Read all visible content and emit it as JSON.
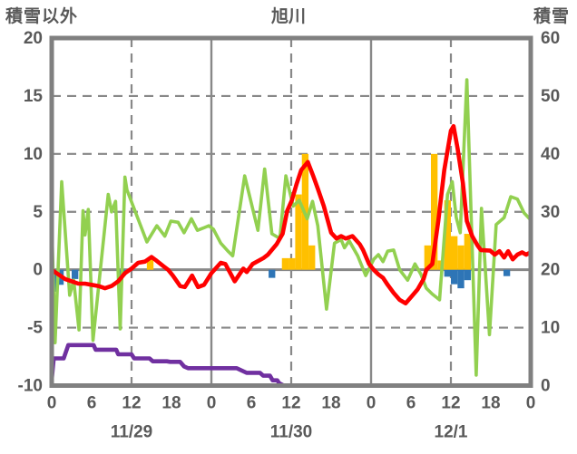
{
  "title": "旭川",
  "left_axis": {
    "label": "積雪以外",
    "ticks": [
      "20",
      "15",
      "10",
      "5",
      "0",
      "-5",
      "-10"
    ],
    "min": -10,
    "max": 20
  },
  "right_axis": {
    "label": "積雪",
    "ticks": [
      "60",
      "50",
      "40",
      "30",
      "20",
      "10",
      "0"
    ],
    "min": 0,
    "max": 60
  },
  "x_axis": {
    "hours_total": 72,
    "hour_tick_step": 6,
    "hour_tick_labels": [
      "0",
      "6",
      "12",
      "18",
      "0",
      "6",
      "12",
      "18",
      "0",
      "6",
      "12",
      "18",
      "0"
    ],
    "date_labels": [
      "11/29",
      "11/30",
      "12/1"
    ],
    "date_label_hours": [
      12,
      36,
      60
    ]
  },
  "colors": {
    "frame": "#808080",
    "grid": "#888888",
    "text": "#595959",
    "temperature_line": "#ff0000",
    "wind_line": "#92d050",
    "snowdepth_line": "#7030a0",
    "precip_positive_bar": "#ffc000",
    "precip_negative_bar": "#2e75b6",
    "background": "#ffffff"
  },
  "chart_data": {
    "type": "combo",
    "x_unit": "hour (0-72, over 11/29 - 12/1)",
    "left_axis_range": [
      -10,
      20
    ],
    "right_axis_range": [
      0,
      60
    ],
    "grid": {
      "h_dashed_at": [
        15,
        10,
        5,
        -5
      ],
      "h_solid_at": [
        0
      ],
      "v_dashed_at_hours": [
        12,
        36,
        60
      ],
      "v_solid_at_hours": [
        24,
        48
      ]
    },
    "series": [
      {
        "name": "red-line",
        "type": "line",
        "axis": "left",
        "color_key": "temperature_line",
        "points": [
          [
            0,
            0
          ],
          [
            1,
            -0.4
          ],
          [
            2,
            -0.8
          ],
          [
            3,
            -1.0
          ],
          [
            4,
            -1.2
          ],
          [
            5,
            -1.2
          ],
          [
            6,
            -1.3
          ],
          [
            7,
            -1.4
          ],
          [
            8,
            -1.6
          ],
          [
            9,
            -1.4
          ],
          [
            10,
            -1.0
          ],
          [
            11,
            -0.3
          ],
          [
            12,
            0.1
          ],
          [
            13,
            0.6
          ],
          [
            14,
            0.7
          ],
          [
            15,
            1.1
          ],
          [
            15.6,
            0.85
          ],
          [
            16.8,
            0.3
          ],
          [
            17.5,
            0
          ],
          [
            18.2,
            -0.5
          ],
          [
            19.3,
            -1.4
          ],
          [
            20,
            -1.5
          ],
          [
            21.1,
            -0.5
          ],
          [
            22,
            -1.5
          ],
          [
            22.9,
            -1.3
          ],
          [
            24,
            -0.3
          ],
          [
            25.4,
            0.6
          ],
          [
            26.1,
            0.5
          ],
          [
            27.5,
            -1.0
          ],
          [
            28.8,
            0.1
          ],
          [
            29.3,
            -0.2
          ],
          [
            30.2,
            0.5
          ],
          [
            31.8,
            1.0
          ],
          [
            32.5,
            1.3
          ],
          [
            33.8,
            2.2
          ],
          [
            34.7,
            3.1
          ],
          [
            35.4,
            5.1
          ],
          [
            36.1,
            6.0
          ],
          [
            36.8,
            7.4
          ],
          [
            37.5,
            8.6
          ],
          [
            38.5,
            9.3
          ],
          [
            39.3,
            8.1
          ],
          [
            40,
            7.0
          ],
          [
            40.9,
            5.5
          ],
          [
            42,
            3.2
          ],
          [
            42.8,
            2.7
          ],
          [
            43.5,
            2.9
          ],
          [
            44.2,
            2.7
          ],
          [
            45.2,
            2.9
          ],
          [
            46.3,
            2.2
          ],
          [
            46.8,
            1.7
          ],
          [
            47.7,
            0.5
          ],
          [
            48.4,
            0
          ],
          [
            49.1,
            -0.4
          ],
          [
            49.8,
            -0.7
          ],
          [
            50.5,
            -1.3
          ],
          [
            51.4,
            -2.0
          ],
          [
            52.3,
            -2.6
          ],
          [
            53.2,
            -2.9
          ],
          [
            54.1,
            -2.3
          ],
          [
            55,
            -1.7
          ],
          [
            55.9,
            -0.8
          ],
          [
            56.3,
            0
          ],
          [
            57.2,
            0.5
          ],
          [
            58.1,
            4.2
          ],
          [
            59,
            8.6
          ],
          [
            60,
            12.0
          ],
          [
            60.4,
            12.4
          ],
          [
            61,
            10.5
          ],
          [
            61.8,
            7.5
          ],
          [
            62.4,
            4.2
          ],
          [
            63.2,
            2.9
          ],
          [
            64,
            2.1
          ],
          [
            64.5,
            1.7
          ],
          [
            65.9,
            1.65
          ],
          [
            66.6,
            1.3
          ],
          [
            67.3,
            1.6
          ],
          [
            68,
            1.05
          ],
          [
            68.6,
            1.6
          ],
          [
            69.3,
            0.9
          ],
          [
            70,
            1.3
          ],
          [
            70.7,
            1.5
          ],
          [
            71.3,
            1.3
          ],
          [
            72,
            1.5
          ]
        ]
      },
      {
        "name": "green-line",
        "type": "line",
        "axis": "left",
        "color_key": "wind_line",
        "points": [
          [
            0,
            4
          ],
          [
            0.5,
            -6.3
          ],
          [
            1.5,
            7.6
          ],
          [
            2.7,
            -2.2
          ],
          [
            3.3,
            -0.9
          ],
          [
            4.1,
            -5.2
          ],
          [
            4.7,
            5.1
          ],
          [
            5,
            3.0
          ],
          [
            5.5,
            5.2
          ],
          [
            6.2,
            -6.1
          ],
          [
            8.5,
            6.5
          ],
          [
            9,
            5.0
          ],
          [
            9.6,
            5.9
          ],
          [
            10.3,
            -5.1
          ],
          [
            11,
            8.0
          ],
          [
            11.3,
            6.9
          ],
          [
            14.3,
            2.4
          ],
          [
            15.8,
            3.8
          ],
          [
            17,
            2.9
          ],
          [
            17.9,
            4.2
          ],
          [
            19,
            4.1
          ],
          [
            19.9,
            3.2
          ],
          [
            21,
            4.4
          ],
          [
            21.9,
            3.4
          ],
          [
            22.8,
            3.6
          ],
          [
            23.6,
            3.8
          ],
          [
            24.3,
            3.5
          ],
          [
            25.4,
            2.3
          ],
          [
            26.5,
            1.6
          ],
          [
            27.2,
            1.2
          ],
          [
            29,
            8.1
          ],
          [
            31,
            3.4
          ],
          [
            32,
            8.7
          ],
          [
            33.1,
            3.1
          ],
          [
            34.3,
            2.7
          ],
          [
            35.2,
            8.1
          ],
          [
            36.3,
            5.5
          ],
          [
            37.2,
            6.0
          ],
          [
            38.4,
            4.4
          ],
          [
            39.2,
            5.9
          ],
          [
            40,
            3.8
          ],
          [
            41.3,
            -3.4
          ],
          [
            42.5,
            2.3
          ],
          [
            43.5,
            2.6
          ],
          [
            44,
            1.9
          ],
          [
            44.7,
            2.5
          ],
          [
            46,
            1.2
          ],
          [
            47.2,
            -0.5
          ],
          [
            48.4,
            0.9
          ],
          [
            49.1,
            1.3
          ],
          [
            49.8,
            0.7
          ],
          [
            50.5,
            1.6
          ],
          [
            51.4,
            1.7
          ],
          [
            52.3,
            0
          ],
          [
            53.5,
            -0.9
          ],
          [
            54.6,
            0.5
          ],
          [
            55.5,
            -0.4
          ],
          [
            56.3,
            -1.6
          ],
          [
            57.2,
            -2.1
          ],
          [
            58.3,
            -2.6
          ],
          [
            59.5,
            6.5
          ],
          [
            60.2,
            7.6
          ],
          [
            60.8,
            4.5
          ],
          [
            61.4,
            3.2
          ],
          [
            62.4,
            16.4
          ],
          [
            63.8,
            -9.1
          ],
          [
            64.6,
            5.3
          ],
          [
            65.8,
            -5.6
          ],
          [
            66.8,
            3.9
          ],
          [
            68,
            4.5
          ],
          [
            69,
            6.3
          ],
          [
            70,
            6.1
          ],
          [
            71,
            4.9
          ],
          [
            72,
            4.3
          ]
        ]
      },
      {
        "name": "purple-line",
        "type": "line",
        "axis": "right",
        "color_key": "snowdepth_line",
        "points": [
          [
            0,
            1
          ],
          [
            0.3,
            4.7
          ],
          [
            1.8,
            4.7
          ],
          [
            2.5,
            7
          ],
          [
            6.3,
            7
          ],
          [
            6.6,
            6.2
          ],
          [
            9.7,
            6.2
          ],
          [
            10,
            5.4
          ],
          [
            12,
            5.4
          ],
          [
            12.4,
            4.7
          ],
          [
            14.7,
            4.7
          ],
          [
            15.2,
            4.2
          ],
          [
            17.3,
            4.2
          ],
          [
            17.8,
            4.1
          ],
          [
            19.3,
            4.1
          ],
          [
            19.9,
            3.3
          ],
          [
            20.5,
            3
          ],
          [
            27.8,
            3
          ],
          [
            29.3,
            2.2
          ],
          [
            31.3,
            2.2
          ],
          [
            31.8,
            1.7
          ],
          [
            32.8,
            1.7
          ],
          [
            33.2,
            0.9
          ],
          [
            33.9,
            0.9
          ],
          [
            34.2,
            0.4
          ],
          [
            34.9,
            0
          ],
          [
            72,
            0
          ]
        ]
      },
      {
        "name": "orange-bars",
        "type": "bar",
        "axis": "left",
        "color_key": "precip_positive_bar",
        "bar_width_hours": 1,
        "points": [
          [
            14.3,
            1.0
          ],
          [
            34.6,
            1.0
          ],
          [
            35.6,
            1.0
          ],
          [
            36.6,
            6.5
          ],
          [
            37.6,
            10
          ],
          [
            38.6,
            2.1
          ],
          [
            56,
            2.1
          ],
          [
            57,
            10
          ],
          [
            58,
            0.8
          ],
          [
            59,
            6.0
          ],
          [
            60,
            2.9
          ],
          [
            61,
            2.1
          ],
          [
            62,
            3.1
          ]
        ]
      },
      {
        "name": "blue-bars",
        "type": "bar",
        "axis": "left",
        "color_key": "precip_negative_bar",
        "bar_width_hours": 1,
        "points": [
          [
            -0.2,
            -1.9
          ],
          [
            0.8,
            -1.3
          ],
          [
            3,
            -0.8
          ],
          [
            10.2,
            -0.5
          ],
          [
            32.6,
            -0.7
          ],
          [
            59,
            -0.6
          ],
          [
            60,
            -1.25
          ],
          [
            61,
            -1.6
          ],
          [
            62,
            -0.9
          ],
          [
            67.9,
            -0.55
          ]
        ]
      }
    ]
  }
}
